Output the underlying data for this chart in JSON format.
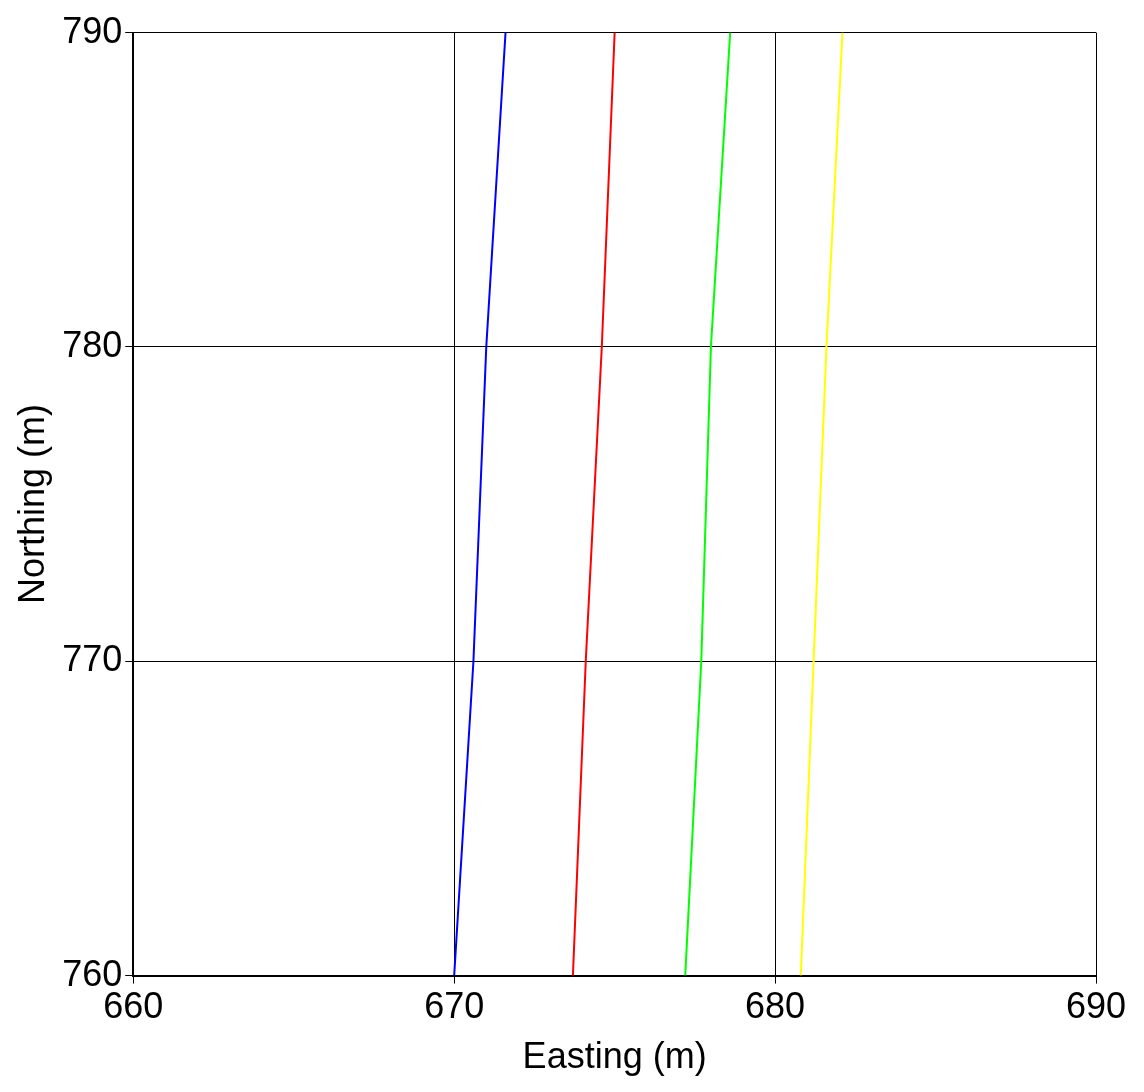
{
  "chart_data": {
    "type": "line",
    "xlabel": "Easting (m)",
    "ylabel": "Northing (m)",
    "xlim": [
      660,
      690
    ],
    "ylim": [
      760,
      790
    ],
    "xticks": [
      660,
      670,
      680,
      690
    ],
    "yticks": [
      760,
      770,
      780,
      790
    ],
    "grid": true,
    "legend": false,
    "marker": "none",
    "line_style": "solid",
    "series": [
      {
        "color": "#0000ff",
        "x": [
          670.0,
          670.6,
          671.0,
          671.6
        ],
        "values": [
          760,
          770,
          780,
          790
        ]
      },
      {
        "color": "#ff0000",
        "x": [
          673.7,
          674.1,
          674.6,
          675.0
        ],
        "values": [
          760,
          770,
          780,
          790
        ]
      },
      {
        "color": "#00ff00",
        "x": [
          677.2,
          677.7,
          678.0,
          678.6
        ],
        "values": [
          760,
          770,
          780,
          790
        ]
      },
      {
        "color": "#ffff00",
        "x": [
          680.8,
          681.2,
          681.6,
          682.1
        ],
        "values": [
          760,
          770,
          780,
          790
        ]
      }
    ]
  }
}
